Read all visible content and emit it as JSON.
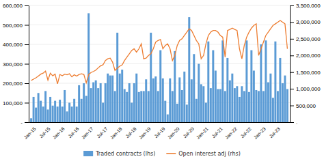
{
  "chart_data": {
    "type": "bar",
    "categories": [
      "Jan-15",
      null,
      null,
      null,
      null,
      null,
      "Jul-15",
      null,
      null,
      null,
      null,
      null,
      "Jan-16",
      null,
      null,
      null,
      null,
      null,
      "Jul-16",
      null,
      null,
      null,
      null,
      null,
      "Jan-17",
      null,
      null,
      null,
      null,
      null,
      "Jul-17",
      null,
      null,
      null,
      null,
      null,
      "Jan-18",
      null,
      null,
      null,
      null,
      null,
      "Jul-18",
      null,
      null,
      null,
      null,
      null,
      "Jan-19",
      null,
      null,
      null,
      null,
      null,
      "Jul-19",
      null,
      null,
      null,
      null,
      null,
      "Jan-20",
      null,
      null,
      null,
      null,
      null,
      "Jul-20",
      null,
      null,
      null,
      null,
      null,
      "Jan-21",
      null,
      null,
      null,
      null,
      null,
      "Jul-21",
      null,
      null,
      null,
      null,
      null,
      "Jan-22",
      null,
      null,
      null,
      null,
      null,
      "Jul-22",
      null,
      null,
      null,
      null,
      null,
      "Jan-23",
      null,
      null,
      null,
      null,
      null,
      "Jul-23",
      null,
      null,
      null,
      null,
      null
    ],
    "series": [
      {
        "name": "Traded contracts (lhs)",
        "type": "bar",
        "color": "#5B9BD5",
        "values": [
          20000,
          130000,
          75000,
          150000,
          110000,
          80000,
          160000,
          65000,
          130000,
          85000,
          110000,
          80000,
          115000,
          80000,
          165000,
          55000,
          100000,
          80000,
          120000,
          80000,
          190000,
          120000,
          200000,
          135000,
          560000,
          175000,
          205000,
          215000,
          175000,
          200000,
          100000,
          200000,
          250000,
          240000,
          240000,
          160000,
          460000,
          250000,
          270000,
          170000,
          155000,
          200000,
          100000,
          200000,
          250000,
          155000,
          160000,
          160000,
          220000,
          160000,
          460000,
          225000,
          235000,
          160000,
          370000,
          225000,
          110000,
          40000,
          225000,
          160000,
          365000,
          95000,
          230000,
          165000,
          260000,
          90000,
          540000,
          220000,
          350000,
          120000,
          300000,
          195000,
          185000,
          100000,
          415000,
          175000,
          370000,
          265000,
          170000,
          170000,
          420000,
          160000,
          330000,
          215000,
          250000,
          175000,
          185000,
          130000,
          185000,
          160000,
          420000,
          155000,
          370000,
          265000,
          165000,
          160000,
          400000,
          160000,
          420000,
          205000,
          250000,
          125000,
          415000,
          160000,
          330000,
          200000,
          240000,
          170000
        ]
      },
      {
        "name": "Open interest adj (rhs)",
        "type": "line",
        "color": "#ED7D31",
        "axis": "y2",
        "values": [
          1250000,
          1290000,
          1330000,
          1380000,
          1440000,
          1470000,
          1530000,
          1260000,
          1470000,
          1390000,
          1440000,
          1150000,
          1430000,
          1390000,
          1440000,
          1420000,
          1450000,
          1360000,
          1420000,
          1380000,
          1430000,
          1450000,
          1430000,
          1180000,
          1430000,
          1490000,
          1520000,
          1560000,
          1630000,
          1690000,
          1720000,
          1850000,
          1900000,
          1920000,
          1800000,
          1550000,
          1620000,
          1680000,
          1720000,
          1850000,
          1950000,
          2050000,
          2150000,
          2200000,
          2100000,
          2200000,
          2350000,
          1900000,
          1920000,
          2000000,
          2050000,
          2200000,
          2400000,
          2450000,
          2480000,
          2200000,
          2300000,
          2350000,
          2200000,
          1850000,
          2000000,
          2300000,
          2450000,
          2500000,
          2600000,
          2700000,
          2800000,
          2750000,
          2600000,
          2450000,
          2350000,
          1900000,
          2000000,
          2350000,
          2600000,
          2700000,
          2750000,
          2750000,
          2700000,
          2600000,
          2550000,
          1950000,
          2750000,
          2780000,
          2820000,
          2780000,
          2750000,
          2200000,
          1900000,
          2300000,
          2550000,
          2700000,
          2820000,
          2900000,
          2950000,
          2000000,
          2200000,
          2400000,
          2600000,
          2700000,
          2800000,
          2900000,
          2950000,
          3000000,
          3050000,
          3000000,
          2950000,
          2200000
        ]
      }
    ],
    "ylim": [
      0,
      600000
    ],
    "yticks": [
      {
        "value": 0,
        "label": "-"
      },
      {
        "value": 100000,
        "label": "100,000"
      },
      {
        "value": 200000,
        "label": "200,000"
      },
      {
        "value": 300000,
        "label": "300,000"
      },
      {
        "value": 400000,
        "label": "400,000"
      },
      {
        "value": 500000,
        "label": "500,000"
      },
      {
        "value": 600000,
        "label": "600,000"
      }
    ],
    "y2lim": [
      0,
      3500000
    ],
    "y2ticks": [
      {
        "value": 0,
        "label": "."
      },
      {
        "value": 500000,
        "label": "500,000"
      },
      {
        "value": 1000000,
        "label": "1,000,000"
      },
      {
        "value": 1500000,
        "label": "1,500,000"
      },
      {
        "value": 2000000,
        "label": "2,000,000"
      },
      {
        "value": 2500000,
        "label": "2,500,000"
      },
      {
        "value": 3000000,
        "label": "3,000,000"
      },
      {
        "value": 3500000,
        "label": "3,500,000"
      }
    ],
    "grid": true,
    "legend": "bottom"
  }
}
